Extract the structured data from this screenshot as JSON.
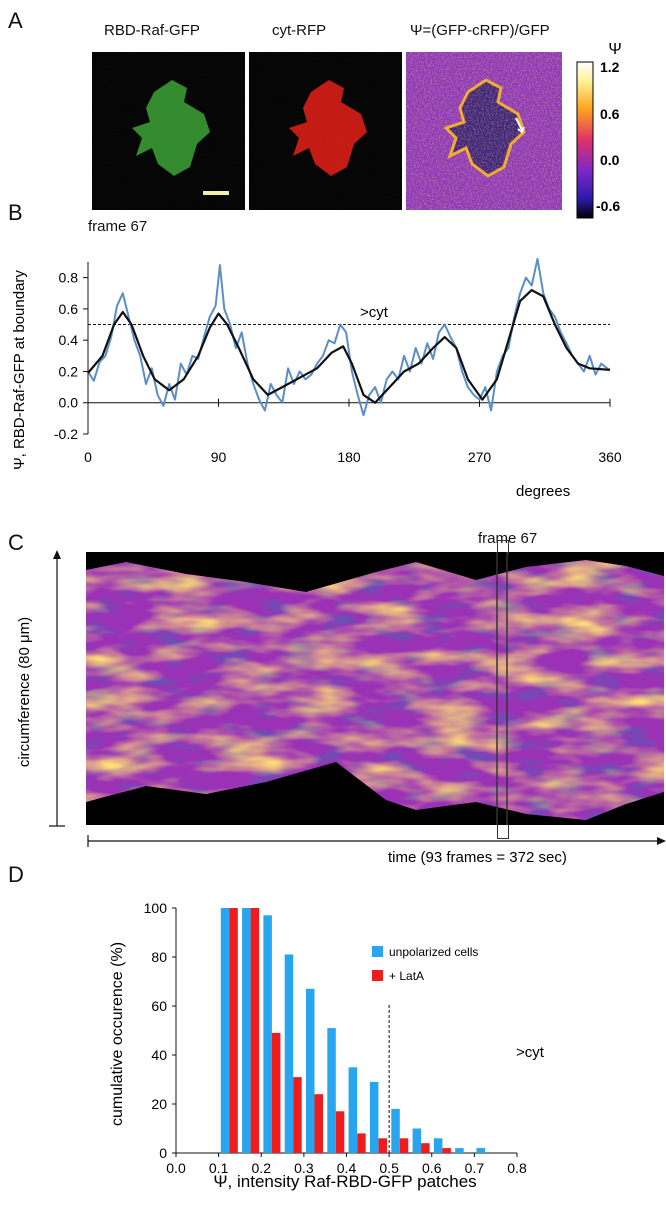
{
  "panels": {
    "A": {
      "letter": "A",
      "titles": [
        "RBD-Raf-GFP",
        "cyt-RFP",
        "Ψ=(GFP-cRFP)/GFP"
      ],
      "colorbar": {
        "symbol": "Ψ",
        "ticks": [
          "1.2",
          "0.6",
          "0.0",
          "-0.6"
        ]
      }
    },
    "B": {
      "letter": "B",
      "frame_label": "frame 67",
      "threshold_label": ">cyt",
      "ylabel": "Ψ, RBD-Raf-GFP at boundary",
      "xlabel": "degrees"
    },
    "C": {
      "letter": "C",
      "frame_label": "frame 67",
      "ylabel": "circumference (80 μm)",
      "xlabel": "time (93 frames = 372 sec)"
    },
    "D": {
      "letter": "D",
      "threshold_label": ">cyt",
      "ylabel": "cumulative occurence (%)",
      "xlabel": "Ψ, intensity Raf-RBD-GFP patches"
    }
  },
  "chart_data": [
    {
      "type": "line",
      "xlim": [
        0,
        360
      ],
      "ylim": [
        -0.2,
        0.9
      ],
      "xticks": [
        0,
        90,
        180,
        270,
        360
      ],
      "yticks": [
        -0.2,
        0.0,
        0.2,
        0.4,
        0.6,
        0.8
      ],
      "threshold": 0.5,
      "series": [
        {
          "color": "#5b8ec7",
          "points": [
            [
              0,
              0.2
            ],
            [
              4,
              0.14
            ],
            [
              8,
              0.26
            ],
            [
              12,
              0.3
            ],
            [
              16,
              0.42
            ],
            [
              20,
              0.62
            ],
            [
              24,
              0.7
            ],
            [
              28,
              0.55
            ],
            [
              32,
              0.4
            ],
            [
              36,
              0.3
            ],
            [
              40,
              0.12
            ],
            [
              44,
              0.22
            ],
            [
              48,
              0.05
            ],
            [
              52,
              -0.02
            ],
            [
              56,
              0.12
            ],
            [
              60,
              0.02
            ],
            [
              64,
              0.25
            ],
            [
              68,
              0.18
            ],
            [
              72,
              0.3
            ],
            [
              76,
              0.28
            ],
            [
              80,
              0.42
            ],
            [
              84,
              0.55
            ],
            [
              88,
              0.62
            ],
            [
              91,
              0.88
            ],
            [
              94,
              0.6
            ],
            [
              98,
              0.5
            ],
            [
              102,
              0.35
            ],
            [
              106,
              0.45
            ],
            [
              110,
              0.25
            ],
            [
              114,
              0.12
            ],
            [
              118,
              0.02
            ],
            [
              122,
              -0.05
            ],
            [
              126,
              0.12
            ],
            [
              130,
              0.05
            ],
            [
              134,
              0.0
            ],
            [
              138,
              0.22
            ],
            [
              142,
              0.12
            ],
            [
              146,
              0.2
            ],
            [
              150,
              0.15
            ],
            [
              154,
              0.18
            ],
            [
              158,
              0.25
            ],
            [
              162,
              0.3
            ],
            [
              166,
              0.4
            ],
            [
              170,
              0.38
            ],
            [
              174,
              0.5
            ],
            [
              178,
              0.45
            ],
            [
              182,
              0.2
            ],
            [
              186,
              0.05
            ],
            [
              190,
              -0.08
            ],
            [
              194,
              0.05
            ],
            [
              198,
              0.1
            ],
            [
              202,
              0.0
            ],
            [
              206,
              0.15
            ],
            [
              210,
              0.2
            ],
            [
              214,
              0.15
            ],
            [
              218,
              0.3
            ],
            [
              222,
              0.2
            ],
            [
              226,
              0.35
            ],
            [
              230,
              0.25
            ],
            [
              234,
              0.38
            ],
            [
              238,
              0.28
            ],
            [
              242,
              0.45
            ],
            [
              246,
              0.5
            ],
            [
              250,
              0.42
            ],
            [
              254,
              0.35
            ],
            [
              258,
              0.2
            ],
            [
              262,
              0.1
            ],
            [
              266,
              0.05
            ],
            [
              270,
              0.02
            ],
            [
              274,
              0.1
            ],
            [
              278,
              -0.05
            ],
            [
              282,
              0.2
            ],
            [
              286,
              0.3
            ],
            [
              290,
              0.35
            ],
            [
              294,
              0.55
            ],
            [
              298,
              0.7
            ],
            [
              302,
              0.8
            ],
            [
              306,
              0.75
            ],
            [
              310,
              0.92
            ],
            [
              314,
              0.7
            ],
            [
              318,
              0.6
            ],
            [
              322,
              0.55
            ],
            [
              326,
              0.45
            ],
            [
              330,
              0.38
            ],
            [
              334,
              0.3
            ],
            [
              338,
              0.25
            ],
            [
              342,
              0.2
            ],
            [
              346,
              0.3
            ],
            [
              350,
              0.18
            ],
            [
              354,
              0.25
            ],
            [
              358,
              0.22
            ],
            [
              360,
              0.21
            ]
          ]
        },
        {
          "color": "#111111",
          "points": [
            [
              0,
              0.19
            ],
            [
              10,
              0.3
            ],
            [
              18,
              0.5
            ],
            [
              24,
              0.58
            ],
            [
              30,
              0.5
            ],
            [
              38,
              0.3
            ],
            [
              46,
              0.15
            ],
            [
              56,
              0.08
            ],
            [
              66,
              0.15
            ],
            [
              76,
              0.3
            ],
            [
              84,
              0.48
            ],
            [
              90,
              0.57
            ],
            [
              96,
              0.5
            ],
            [
              104,
              0.35
            ],
            [
              114,
              0.15
            ],
            [
              124,
              0.05
            ],
            [
              134,
              0.1
            ],
            [
              146,
              0.16
            ],
            [
              158,
              0.22
            ],
            [
              168,
              0.32
            ],
            [
              176,
              0.36
            ],
            [
              182,
              0.25
            ],
            [
              190,
              0.05
            ],
            [
              198,
              0.0
            ],
            [
              208,
              0.1
            ],
            [
              218,
              0.2
            ],
            [
              228,
              0.25
            ],
            [
              238,
              0.35
            ],
            [
              246,
              0.42
            ],
            [
              254,
              0.35
            ],
            [
              262,
              0.15
            ],
            [
              272,
              0.02
            ],
            [
              282,
              0.15
            ],
            [
              290,
              0.4
            ],
            [
              298,
              0.65
            ],
            [
              306,
              0.72
            ],
            [
              314,
              0.68
            ],
            [
              322,
              0.5
            ],
            [
              330,
              0.35
            ],
            [
              338,
              0.25
            ],
            [
              346,
              0.22
            ],
            [
              360,
              0.21
            ]
          ]
        }
      ]
    },
    {
      "type": "bar",
      "xlim": [
        0.0,
        0.8
      ],
      "ylim": [
        0,
        100
      ],
      "xticks": [
        0.0,
        0.1,
        0.2,
        0.3,
        0.4,
        0.5,
        0.6,
        0.7,
        0.8
      ],
      "yticks": [
        0,
        20,
        40,
        60,
        80,
        100
      ],
      "threshold": 0.5,
      "categories": [
        0.125,
        0.175,
        0.225,
        0.275,
        0.325,
        0.375,
        0.425,
        0.475,
        0.525,
        0.575,
        0.625,
        0.675,
        0.725
      ],
      "series": [
        {
          "name": "unpolarized cells",
          "color": "#27a5ef",
          "values": [
            100,
            100,
            97,
            81,
            67,
            51,
            35,
            29,
            18,
            10,
            6,
            2,
            2
          ]
        },
        {
          "name": "+ LatA",
          "color": "#ee1c1c",
          "values": [
            100,
            100,
            49,
            31,
            24,
            17,
            8,
            6,
            6,
            4,
            2,
            0,
            0
          ]
        }
      ]
    }
  ]
}
